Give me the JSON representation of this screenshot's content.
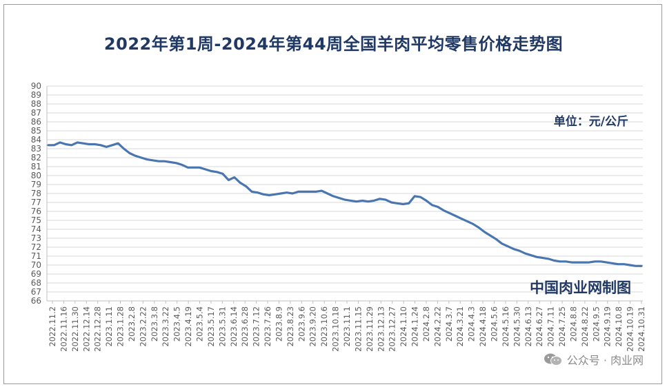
{
  "chart_data": {
    "type": "line",
    "title": "2022年第1周-2024年第44周全国羊肉平均零售价格走势图",
    "unit_label": "单位：元/公斤",
    "source_label": "中国肉业网制图",
    "watermark": "公众号 · 肉业网",
    "ylim": [
      66,
      90
    ],
    "yticks": [
      66,
      67,
      68,
      69,
      70,
      71,
      72,
      73,
      74,
      75,
      76,
      77,
      78,
      79,
      80,
      81,
      82,
      83,
      84,
      85,
      86,
      87,
      88,
      89,
      90
    ],
    "grid": true,
    "line_color": "#4a76b0",
    "title_color": "#1f3864",
    "x_tick_labels": [
      "2022.11.2",
      "2022.11.16",
      "2022.11.30",
      "2022.12.14",
      "2022.12.28",
      "2023.1.11",
      "2023.1.28",
      "2023.2.8",
      "2023.2.22",
      "2023.3.8",
      "2023.3.22",
      "2023.4.5",
      "2023.4.19",
      "2023.5.4",
      "2023.5.17",
      "2023.5.31",
      "2023.6.14",
      "2023.6.28",
      "2023.7.12",
      "2023.7.26",
      "2023.8.9",
      "2023.8.23",
      "2023.9.6",
      "2023.9.20",
      "2023.10.6",
      "2023.10.18",
      "2023.11.1",
      "2023.11.15",
      "2023.11.29",
      "2023.12.13",
      "2023.12.27",
      "2024.1.10",
      "2024.1.24",
      "2024.2.8",
      "2024.2.22",
      "2024.3.7",
      "2024.3.21",
      "2024.4.3",
      "2024.4.18",
      "2024.5.6",
      "2024.5.16",
      "2024.5.30",
      "2024.6.13",
      "2024.6.27",
      "2024.7.11",
      "2024.7.25",
      "2024.8.8",
      "2024.8.22",
      "2024.9.5",
      "2024.9.19",
      "2024.10.8",
      "2024.10.19",
      "2024.10.31"
    ],
    "series": [
      {
        "values": [
          83.4,
          83.4,
          83.7,
          83.5,
          83.4,
          83.7,
          83.6,
          83.5,
          83.5,
          83.4,
          83.2,
          83.4,
          83.6,
          83.0,
          82.5,
          82.2,
          82.0,
          81.8,
          81.7,
          81.6,
          81.6,
          81.5,
          81.4,
          81.2,
          80.9,
          80.9,
          80.9,
          80.7,
          80.5,
          80.4,
          80.2,
          79.5,
          79.8,
          79.2,
          78.8,
          78.2,
          78.1,
          77.9,
          77.8,
          77.9,
          78.0,
          78.1,
          78.0,
          78.2,
          78.2,
          78.2,
          78.2,
          78.3,
          78.0,
          77.7,
          77.5,
          77.3,
          77.2,
          77.1,
          77.2,
          77.1,
          77.2,
          77.4,
          77.3,
          77.0,
          76.9,
          76.8,
          76.9,
          77.7,
          77.6,
          77.2,
          76.7,
          76.5,
          76.1,
          75.8,
          75.5,
          75.2,
          74.9,
          74.6,
          74.2,
          73.7,
          73.3,
          72.9,
          72.4,
          72.1,
          71.8,
          71.6,
          71.3,
          71.1,
          70.9,
          70.8,
          70.7,
          70.5,
          70.4,
          70.4,
          70.3,
          70.3,
          70.3,
          70.3,
          70.4,
          70.4,
          70.3,
          70.2,
          70.1,
          70.1,
          70.0,
          69.9,
          69.9
        ]
      }
    ]
  }
}
